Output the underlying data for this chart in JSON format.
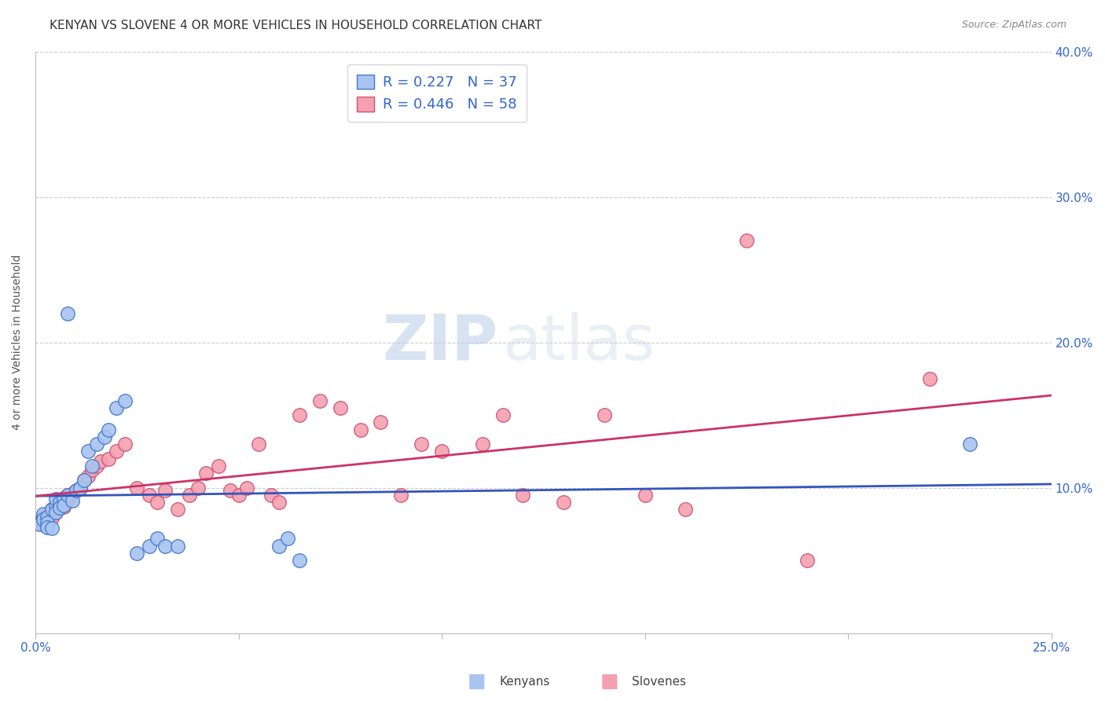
{
  "title": "KENYAN VS SLOVENE 4 OR MORE VEHICLES IN HOUSEHOLD CORRELATION CHART",
  "source": "Source: ZipAtlas.com",
  "ylabel": "4 or more Vehicles in Household",
  "xlim": [
    0.0,
    0.25
  ],
  "ylim": [
    0.0,
    0.4
  ],
  "x_ticks": [
    0.0,
    0.05,
    0.1,
    0.15,
    0.2,
    0.25
  ],
  "y_ticks": [
    0.0,
    0.1,
    0.2,
    0.3,
    0.4
  ],
  "x_tick_labels": [
    "0.0%",
    "",
    "",
    "",
    "",
    "25.0%"
  ],
  "y_tick_labels_right": [
    "",
    "10.0%",
    "20.0%",
    "30.0%",
    "40.0%"
  ],
  "kenyan_color": "#a8c4f0",
  "kenyan_edge_color": "#4477cc",
  "kenyan_line_color": "#3355bb",
  "slovene_color": "#f5a0b0",
  "slovene_edge_color": "#cc5577",
  "slovene_line_color": "#cc3366",
  "kenyan_r": 0.227,
  "kenyan_n": 37,
  "slovene_r": 0.446,
  "slovene_n": 58,
  "watermark_zip": "ZIP",
  "watermark_atlas": "atlas",
  "legend_label_kenyan": "Kenyans",
  "legend_label_slovene": "Slovenes",
  "kenyan_x": [
    0.001,
    0.002,
    0.002,
    0.003,
    0.003,
    0.003,
    0.004,
    0.004,
    0.005,
    0.005,
    0.005,
    0.006,
    0.006,
    0.007,
    0.007,
    0.008,
    0.009,
    0.01,
    0.011,
    0.012,
    0.013,
    0.014,
    0.015,
    0.017,
    0.018,
    0.02,
    0.022,
    0.025,
    0.028,
    0.03,
    0.032,
    0.035,
    0.06,
    0.062,
    0.065,
    0.23,
    0.008
  ],
  "kenyan_y": [
    0.075,
    0.082,
    0.078,
    0.08,
    0.076,
    0.073,
    0.085,
    0.072,
    0.088,
    0.092,
    0.083,
    0.09,
    0.086,
    0.093,
    0.088,
    0.095,
    0.091,
    0.098,
    0.1,
    0.105,
    0.125,
    0.115,
    0.13,
    0.135,
    0.14,
    0.155,
    0.16,
    0.055,
    0.06,
    0.065,
    0.06,
    0.06,
    0.06,
    0.065,
    0.05,
    0.13,
    0.22
  ],
  "slovene_x": [
    0.001,
    0.002,
    0.003,
    0.003,
    0.004,
    0.004,
    0.005,
    0.005,
    0.006,
    0.006,
    0.007,
    0.007,
    0.008,
    0.008,
    0.009,
    0.01,
    0.011,
    0.012,
    0.013,
    0.014,
    0.015,
    0.016,
    0.018,
    0.02,
    0.022,
    0.025,
    0.028,
    0.03,
    0.032,
    0.035,
    0.038,
    0.04,
    0.042,
    0.045,
    0.048,
    0.05,
    0.052,
    0.055,
    0.058,
    0.06,
    0.065,
    0.07,
    0.075,
    0.08,
    0.085,
    0.09,
    0.095,
    0.1,
    0.11,
    0.115,
    0.12,
    0.13,
    0.14,
    0.15,
    0.16,
    0.175,
    0.19,
    0.22
  ],
  "slovene_y": [
    0.076,
    0.08,
    0.082,
    0.078,
    0.085,
    0.079,
    0.088,
    0.083,
    0.09,
    0.086,
    0.093,
    0.087,
    0.095,
    0.091,
    0.096,
    0.098,
    0.1,
    0.105,
    0.108,
    0.112,
    0.115,
    0.118,
    0.12,
    0.125,
    0.13,
    0.1,
    0.095,
    0.09,
    0.098,
    0.085,
    0.095,
    0.1,
    0.11,
    0.115,
    0.098,
    0.095,
    0.1,
    0.13,
    0.095,
    0.09,
    0.15,
    0.16,
    0.155,
    0.14,
    0.145,
    0.095,
    0.13,
    0.125,
    0.13,
    0.15,
    0.095,
    0.09,
    0.15,
    0.095,
    0.085,
    0.27,
    0.05,
    0.175
  ],
  "bg_color": "#ffffff",
  "grid_color": "#cccccc",
  "axis_color": "#3366cc",
  "title_color": "#333333",
  "title_fontsize": 11,
  "ylabel_fontsize": 10,
  "tick_fontsize": 11,
  "source_fontsize": 9,
  "marker_size": 160
}
